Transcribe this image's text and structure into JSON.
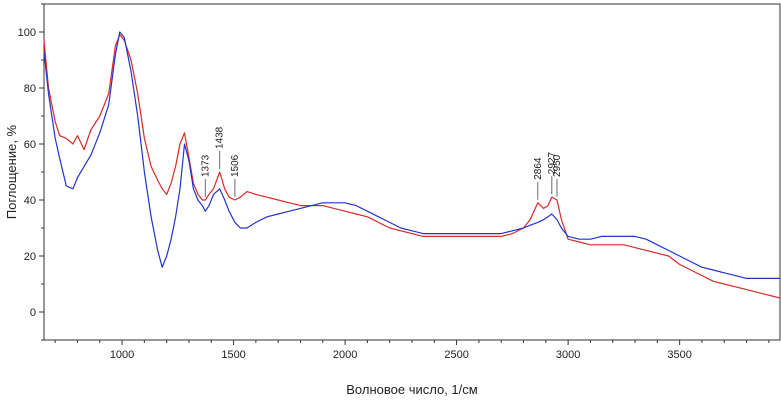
{
  "chart_data": {
    "type": "line",
    "title": "",
    "xlabel": "Волновое число, 1/см",
    "ylabel": "Поглощение, %",
    "xlim": [
      650,
      3950
    ],
    "ylim": [
      -10,
      110
    ],
    "xticks": [
      1000,
      1500,
      2000,
      2500,
      3000,
      3500
    ],
    "xtick_labels": [
      "1000",
      "1500",
      "2000",
      "2500",
      "3000",
      "3500"
    ],
    "yticks": [
      0,
      20,
      40,
      60,
      80,
      100
    ],
    "ytick_labels": [
      "0",
      "20",
      "40",
      "60",
      "80",
      "100"
    ],
    "grid": false,
    "legend": "none",
    "series": [
      {
        "color": "#d62a2a",
        "x": [
          650,
          670,
          700,
          720,
          750,
          780,
          800,
          830,
          860,
          900,
          940,
          970,
          990,
          1010,
          1040,
          1070,
          1100,
          1130,
          1160,
          1180,
          1200,
          1220,
          1240,
          1260,
          1280,
          1300,
          1320,
          1340,
          1360,
          1373,
          1390,
          1410,
          1438,
          1460,
          1480,
          1506,
          1530,
          1560,
          1600,
          1650,
          1700,
          1750,
          1800,
          1850,
          1900,
          1950,
          2000,
          2050,
          2100,
          2150,
          2200,
          2250,
          2300,
          2350,
          2400,
          2450,
          2500,
          2550,
          2600,
          2650,
          2700,
          2750,
          2800,
          2830,
          2864,
          2890,
          2910,
          2927,
          2950,
          2970,
          3000,
          3050,
          3100,
          3150,
          3200,
          3250,
          3300,
          3350,
          3400,
          3450,
          3500,
          3550,
          3600,
          3650,
          3700,
          3750,
          3800,
          3850,
          3900,
          3950
        ],
        "values": [
          97,
          80,
          68,
          63,
          62,
          60,
          63,
          58,
          65,
          70,
          78,
          95,
          99,
          97,
          90,
          78,
          62,
          52,
          47,
          44,
          42,
          46,
          52,
          60,
          64,
          55,
          46,
          42,
          40,
          40,
          42,
          44,
          50,
          44,
          41,
          40,
          41,
          43,
          42,
          41,
          40,
          39,
          38,
          38,
          38,
          37,
          36,
          35,
          34,
          32,
          30,
          29,
          28,
          27,
          27,
          27,
          27,
          27,
          27,
          27,
          27,
          28,
          30,
          33,
          39,
          37,
          38,
          41,
          40,
          33,
          26,
          25,
          24,
          24,
          24,
          24,
          23,
          22,
          21,
          20,
          17,
          15,
          13,
          11,
          10,
          9,
          8,
          7,
          6,
          5
        ]
      },
      {
        "color": "#2233cc",
        "x": [
          650,
          670,
          700,
          720,
          750,
          780,
          800,
          830,
          860,
          900,
          940,
          970,
          990,
          1010,
          1040,
          1070,
          1100,
          1130,
          1160,
          1180,
          1200,
          1220,
          1240,
          1260,
          1280,
          1300,
          1320,
          1340,
          1360,
          1373,
          1390,
          1410,
          1438,
          1460,
          1480,
          1506,
          1530,
          1560,
          1600,
          1650,
          1700,
          1750,
          1800,
          1850,
          1900,
          1950,
          2000,
          2050,
          2100,
          2150,
          2200,
          2250,
          2300,
          2350,
          2400,
          2450,
          2500,
          2550,
          2600,
          2650,
          2700,
          2750,
          2800,
          2830,
          2864,
          2890,
          2910,
          2927,
          2950,
          2970,
          3000,
          3050,
          3100,
          3150,
          3200,
          3250,
          3300,
          3350,
          3400,
          3450,
          3500,
          3550,
          3600,
          3650,
          3700,
          3750,
          3800,
          3850,
          3900,
          3950
        ],
        "values": [
          93,
          78,
          62,
          55,
          45,
          44,
          48,
          52,
          56,
          64,
          74,
          92,
          100,
          98,
          86,
          70,
          50,
          34,
          22,
          16,
          20,
          26,
          34,
          44,
          60,
          54,
          44,
          40,
          38,
          36,
          38,
          42,
          44,
          40,
          36,
          32,
          30,
          30,
          32,
          34,
          35,
          36,
          37,
          38,
          39,
          39,
          39,
          38,
          36,
          34,
          32,
          30,
          29,
          28,
          28,
          28,
          28,
          28,
          28,
          28,
          28,
          29,
          30,
          31,
          32,
          33,
          34,
          35,
          33,
          30,
          27,
          26,
          26,
          27,
          27,
          27,
          27,
          26,
          24,
          22,
          20,
          18,
          16,
          15,
          14,
          13,
          12,
          12,
          12,
          12
        ]
      }
    ],
    "annotations": [
      {
        "label": "1373",
        "x": 1373
      },
      {
        "label": "1438",
        "x": 1438
      },
      {
        "label": "1506",
        "x": 1506
      },
      {
        "label": "2864",
        "x": 2864
      },
      {
        "label": "2927",
        "x": 2927
      },
      {
        "label": "2950",
        "x": 2950
      }
    ]
  }
}
